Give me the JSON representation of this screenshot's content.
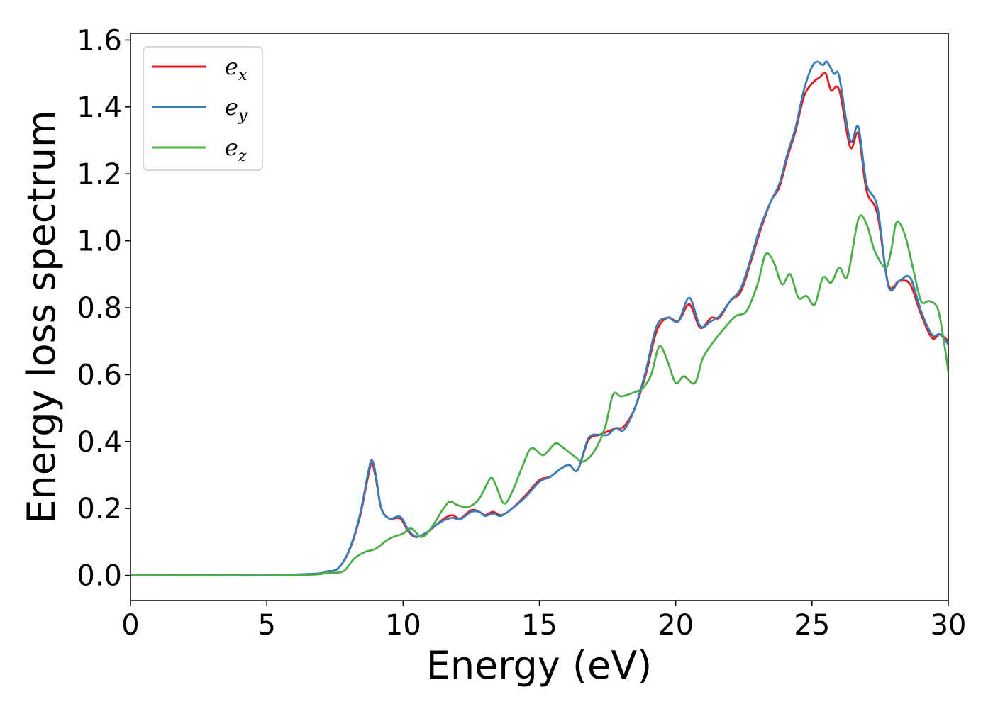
{
  "chart_data": {
    "type": "line",
    "xlabel": "Energy (eV)",
    "ylabel": "Energy loss spectrum",
    "xlim": [
      0,
      30
    ],
    "ylim": [
      -0.075,
      1.62
    ],
    "xticks": [
      0,
      5,
      10,
      15,
      20,
      25,
      30
    ],
    "xtick_labels": [
      "0",
      "5",
      "10",
      "15",
      "20",
      "25",
      "30"
    ],
    "yticks": [
      0.0,
      0.2,
      0.4,
      0.6,
      0.8,
      1.0,
      1.2,
      1.4,
      1.6
    ],
    "ytick_labels": [
      "0.0",
      "0.2",
      "0.4",
      "0.6",
      "0.8",
      "1.0",
      "1.2",
      "1.4",
      "1.6"
    ],
    "grid": false,
    "legend_position": "top-left",
    "series": [
      {
        "name": "e_x",
        "label_base": "e",
        "label_sub": "x",
        "color": "#e41a1c",
        "points": [
          [
            0,
            0
          ],
          [
            5,
            0.001
          ],
          [
            6.8,
            0.005
          ],
          [
            7.2,
            0.012
          ],
          [
            7.6,
            0.02
          ],
          [
            8.0,
            0.07
          ],
          [
            8.4,
            0.17
          ],
          [
            8.7,
            0.29
          ],
          [
            8.85,
            0.335
          ],
          [
            9.0,
            0.29
          ],
          [
            9.2,
            0.2
          ],
          [
            9.5,
            0.17
          ],
          [
            9.9,
            0.17
          ],
          [
            10.2,
            0.13
          ],
          [
            10.5,
            0.115
          ],
          [
            10.9,
            0.13
          ],
          [
            11.2,
            0.15
          ],
          [
            11.5,
            0.17
          ],
          [
            11.8,
            0.18
          ],
          [
            12.1,
            0.17
          ],
          [
            12.5,
            0.195
          ],
          [
            12.8,
            0.19
          ],
          [
            13.0,
            0.18
          ],
          [
            13.3,
            0.19
          ],
          [
            13.6,
            0.18
          ],
          [
            14.0,
            0.2
          ],
          [
            14.5,
            0.24
          ],
          [
            15.0,
            0.285
          ],
          [
            15.4,
            0.295
          ],
          [
            15.8,
            0.32
          ],
          [
            16.1,
            0.33
          ],
          [
            16.4,
            0.315
          ],
          [
            16.8,
            0.405
          ],
          [
            17.2,
            0.42
          ],
          [
            17.5,
            0.43
          ],
          [
            17.8,
            0.44
          ],
          [
            18.1,
            0.445
          ],
          [
            18.5,
            0.5
          ],
          [
            18.9,
            0.6
          ],
          [
            19.3,
            0.73
          ],
          [
            19.7,
            0.77
          ],
          [
            20.1,
            0.76
          ],
          [
            20.5,
            0.81
          ],
          [
            20.9,
            0.74
          ],
          [
            21.3,
            0.77
          ],
          [
            21.6,
            0.77
          ],
          [
            22.0,
            0.82
          ],
          [
            22.4,
            0.85
          ],
          [
            22.8,
            0.95
          ],
          [
            23.1,
            1.03
          ],
          [
            23.5,
            1.12
          ],
          [
            23.8,
            1.16
          ],
          [
            24.1,
            1.25
          ],
          [
            24.4,
            1.33
          ],
          [
            24.7,
            1.43
          ],
          [
            25.0,
            1.47
          ],
          [
            25.3,
            1.49
          ],
          [
            25.5,
            1.5
          ],
          [
            25.7,
            1.45
          ],
          [
            26.0,
            1.45
          ],
          [
            26.4,
            1.28
          ],
          [
            26.7,
            1.32
          ],
          [
            27.0,
            1.15
          ],
          [
            27.4,
            1.08
          ],
          [
            27.8,
            0.87
          ],
          [
            28.2,
            0.88
          ],
          [
            28.6,
            0.87
          ],
          [
            29.0,
            0.78
          ],
          [
            29.4,
            0.71
          ],
          [
            29.7,
            0.72
          ],
          [
            30,
            0.7
          ]
        ]
      },
      {
        "name": "e_y",
        "label_base": "e",
        "label_sub": "y",
        "color": "#377eb8",
        "points": [
          [
            0,
            0
          ],
          [
            5,
            0.001
          ],
          [
            6.8,
            0.005
          ],
          [
            7.2,
            0.012
          ],
          [
            7.6,
            0.02
          ],
          [
            8.0,
            0.072
          ],
          [
            8.4,
            0.175
          ],
          [
            8.7,
            0.3
          ],
          [
            8.85,
            0.345
          ],
          [
            9.0,
            0.3
          ],
          [
            9.2,
            0.2
          ],
          [
            9.5,
            0.17
          ],
          [
            9.9,
            0.175
          ],
          [
            10.2,
            0.135
          ],
          [
            10.5,
            0.115
          ],
          [
            10.9,
            0.13
          ],
          [
            11.2,
            0.15
          ],
          [
            11.5,
            0.165
          ],
          [
            11.8,
            0.172
          ],
          [
            12.1,
            0.168
          ],
          [
            12.5,
            0.19
          ],
          [
            12.8,
            0.19
          ],
          [
            13.0,
            0.178
          ],
          [
            13.3,
            0.185
          ],
          [
            13.6,
            0.178
          ],
          [
            14.0,
            0.2
          ],
          [
            14.5,
            0.235
          ],
          [
            15.0,
            0.28
          ],
          [
            15.4,
            0.295
          ],
          [
            15.8,
            0.32
          ],
          [
            16.1,
            0.33
          ],
          [
            16.4,
            0.315
          ],
          [
            16.8,
            0.41
          ],
          [
            17.2,
            0.42
          ],
          [
            17.5,
            0.42
          ],
          [
            17.8,
            0.44
          ],
          [
            18.1,
            0.435
          ],
          [
            18.5,
            0.5
          ],
          [
            18.9,
            0.61
          ],
          [
            19.3,
            0.745
          ],
          [
            19.7,
            0.77
          ],
          [
            20.1,
            0.76
          ],
          [
            20.5,
            0.83
          ],
          [
            20.9,
            0.745
          ],
          [
            21.3,
            0.76
          ],
          [
            21.6,
            0.775
          ],
          [
            22.0,
            0.82
          ],
          [
            22.4,
            0.86
          ],
          [
            22.8,
            0.96
          ],
          [
            23.1,
            1.04
          ],
          [
            23.5,
            1.12
          ],
          [
            23.8,
            1.17
          ],
          [
            24.1,
            1.26
          ],
          [
            24.4,
            1.34
          ],
          [
            24.7,
            1.45
          ],
          [
            25.0,
            1.52
          ],
          [
            25.2,
            1.535
          ],
          [
            25.4,
            1.525
          ],
          [
            25.55,
            1.535
          ],
          [
            25.8,
            1.5
          ],
          [
            26.0,
            1.49
          ],
          [
            26.4,
            1.3
          ],
          [
            26.7,
            1.34
          ],
          [
            27.0,
            1.17
          ],
          [
            27.4,
            1.1
          ],
          [
            27.8,
            0.865
          ],
          [
            28.2,
            0.88
          ],
          [
            28.6,
            0.89
          ],
          [
            29.0,
            0.79
          ],
          [
            29.4,
            0.72
          ],
          [
            29.7,
            0.72
          ],
          [
            30,
            0.69
          ]
        ]
      },
      {
        "name": "e_z",
        "label_base": "e",
        "label_sub": "z",
        "color": "#4daf4a",
        "points": [
          [
            0,
            0
          ],
          [
            5,
            0.0
          ],
          [
            6.8,
            0.003
          ],
          [
            7.2,
            0.008
          ],
          [
            7.8,
            0.012
          ],
          [
            8.2,
            0.05
          ],
          [
            8.6,
            0.07
          ],
          [
            9.0,
            0.08
          ],
          [
            9.5,
            0.11
          ],
          [
            10.0,
            0.125
          ],
          [
            10.3,
            0.14
          ],
          [
            10.7,
            0.115
          ],
          [
            11.1,
            0.15
          ],
          [
            11.4,
            0.19
          ],
          [
            11.7,
            0.22
          ],
          [
            12.0,
            0.21
          ],
          [
            12.4,
            0.205
          ],
          [
            12.8,
            0.23
          ],
          [
            13.2,
            0.29
          ],
          [
            13.4,
            0.27
          ],
          [
            13.7,
            0.215
          ],
          [
            14.0,
            0.25
          ],
          [
            14.4,
            0.33
          ],
          [
            14.7,
            0.38
          ],
          [
            15.1,
            0.36
          ],
          [
            15.3,
            0.37
          ],
          [
            15.6,
            0.395
          ],
          [
            15.9,
            0.38
          ],
          [
            16.3,
            0.355
          ],
          [
            16.6,
            0.34
          ],
          [
            17.0,
            0.37
          ],
          [
            17.4,
            0.44
          ],
          [
            17.7,
            0.54
          ],
          [
            18.0,
            0.535
          ],
          [
            18.4,
            0.545
          ],
          [
            18.8,
            0.56
          ],
          [
            19.1,
            0.6
          ],
          [
            19.4,
            0.685
          ],
          [
            19.7,
            0.64
          ],
          [
            20.0,
            0.575
          ],
          [
            20.3,
            0.595
          ],
          [
            20.7,
            0.575
          ],
          [
            21.0,
            0.65
          ],
          [
            21.4,
            0.7
          ],
          [
            21.8,
            0.74
          ],
          [
            22.2,
            0.775
          ],
          [
            22.6,
            0.79
          ],
          [
            23.0,
            0.87
          ],
          [
            23.3,
            0.96
          ],
          [
            23.6,
            0.935
          ],
          [
            23.9,
            0.87
          ],
          [
            24.2,
            0.9
          ],
          [
            24.5,
            0.83
          ],
          [
            24.8,
            0.835
          ],
          [
            25.1,
            0.81
          ],
          [
            25.4,
            0.89
          ],
          [
            25.7,
            0.875
          ],
          [
            26.0,
            0.92
          ],
          [
            26.3,
            0.895
          ],
          [
            26.7,
            1.065
          ],
          [
            27.0,
            1.05
          ],
          [
            27.3,
            0.97
          ],
          [
            27.7,
            0.92
          ],
          [
            27.9,
            0.97
          ],
          [
            28.1,
            1.055
          ],
          [
            28.4,
            1.02
          ],
          [
            28.7,
            0.92
          ],
          [
            29.0,
            0.82
          ],
          [
            29.3,
            0.82
          ],
          [
            29.6,
            0.8
          ],
          [
            29.8,
            0.72
          ],
          [
            30,
            0.61
          ]
        ]
      }
    ]
  }
}
